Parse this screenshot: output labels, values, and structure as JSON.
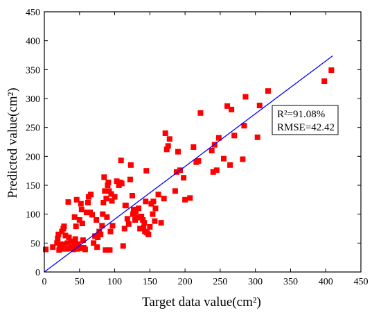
{
  "chart_data": {
    "type": "scatter",
    "title": "",
    "xlabel": "Target data value(cm²)",
    "ylabel": "Predicted value(cm²)",
    "xlim": [
      0,
      450
    ],
    "ylim": [
      0,
      450
    ],
    "xticks": [
      "0",
      "50",
      "100",
      "150",
      "200",
      "250",
      "300",
      "350",
      "400",
      "450"
    ],
    "yticks": [
      "0",
      "50",
      "100",
      "150",
      "200",
      "250",
      "300",
      "350",
      "400",
      "450"
    ],
    "grid": false,
    "legend": "none",
    "marker_color": "#ff0000",
    "line_color": "#0000ff",
    "fit_line": {
      "x": [
        0,
        410
      ],
      "y": [
        0,
        374
      ]
    },
    "annotation": {
      "lines": [
        "R²=91.08%",
        "RMSE=42.42"
      ]
    },
    "points": [
      [
        2,
        39
      ],
      [
        12,
        43
      ],
      [
        18,
        50
      ],
      [
        19,
        58
      ],
      [
        20,
        65
      ],
      [
        21,
        38
      ],
      [
        22,
        47
      ],
      [
        23,
        42
      ],
      [
        24,
        40
      ],
      [
        25,
        70
      ],
      [
        26,
        48
      ],
      [
        27,
        75
      ],
      [
        28,
        79
      ],
      [
        30,
        63
      ],
      [
        32,
        40
      ],
      [
        33,
        50
      ],
      [
        34,
        121
      ],
      [
        35,
        60
      ],
      [
        38,
        53
      ],
      [
        39,
        41
      ],
      [
        40,
        43
      ],
      [
        41,
        39
      ],
      [
        42,
        50
      ],
      [
        43,
        95
      ],
      [
        44,
        57
      ],
      [
        45,
        79
      ],
      [
        46,
        125
      ],
      [
        47,
        40
      ],
      [
        48,
        48
      ],
      [
        50,
        90
      ],
      [
        51,
        41
      ],
      [
        52,
        118
      ],
      [
        53,
        108
      ],
      [
        54,
        84
      ],
      [
        55,
        55
      ],
      [
        56,
        42
      ],
      [
        58,
        39
      ],
      [
        60,
        103
      ],
      [
        62,
        120
      ],
      [
        63,
        130
      ],
      [
        65,
        103
      ],
      [
        66,
        134
      ],
      [
        68,
        99
      ],
      [
        70,
        50
      ],
      [
        72,
        62
      ],
      [
        74,
        90
      ],
      [
        75,
        43
      ],
      [
        76,
        60
      ],
      [
        78,
        70
      ],
      [
        80,
        65
      ],
      [
        82,
        80
      ],
      [
        83,
        100
      ],
      [
        84,
        120
      ],
      [
        85,
        164
      ],
      [
        86,
        140
      ],
      [
        87,
        38
      ],
      [
        88,
        127
      ],
      [
        89,
        95
      ],
      [
        90,
        150
      ],
      [
        91,
        155
      ],
      [
        92,
        140
      ],
      [
        93,
        38
      ],
      [
        94,
        70
      ],
      [
        95,
        135
      ],
      [
        96,
        123
      ],
      [
        97,
        80
      ],
      [
        100,
        130
      ],
      [
        103,
        157
      ],
      [
        106,
        150
      ],
      [
        108,
        155
      ],
      [
        109,
        193
      ],
      [
        110,
        153
      ],
      [
        112,
        45
      ],
      [
        114,
        75
      ],
      [
        115,
        115
      ],
      [
        116,
        115
      ],
      [
        118,
        92
      ],
      [
        120,
        83
      ],
      [
        122,
        160
      ],
      [
        123,
        185
      ],
      [
        125,
        132
      ],
      [
        126,
        100
      ],
      [
        127,
        108
      ],
      [
        128,
        100
      ],
      [
        129,
        90
      ],
      [
        130,
        104
      ],
      [
        132,
        94
      ],
      [
        134,
        110
      ],
      [
        136,
        75
      ],
      [
        138,
        96
      ],
      [
        140,
        90
      ],
      [
        141,
        76
      ],
      [
        142,
        85
      ],
      [
        143,
        70
      ],
      [
        144,
        122
      ],
      [
        145,
        175
      ],
      [
        146,
        68
      ],
      [
        148,
        65
      ],
      [
        150,
        78
      ],
      [
        152,
        118
      ],
      [
        154,
        100
      ],
      [
        155,
        122
      ],
      [
        157,
        88
      ],
      [
        158,
        110
      ],
      [
        162,
        134
      ],
      [
        166,
        85
      ],
      [
        170,
        127
      ],
      [
        172,
        240
      ],
      [
        174,
        212
      ],
      [
        176,
        218
      ],
      [
        178,
        230
      ],
      [
        186,
        140
      ],
      [
        188,
        173
      ],
      [
        190,
        208
      ],
      [
        193,
        176
      ],
      [
        198,
        163
      ],
      [
        200,
        125
      ],
      [
        207,
        128
      ],
      [
        212,
        216
      ],
      [
        216,
        190
      ],
      [
        219,
        192
      ],
      [
        222,
        275
      ],
      [
        238,
        210
      ],
      [
        240,
        173
      ],
      [
        242,
        220
      ],
      [
        245,
        176
      ],
      [
        248,
        232
      ],
      [
        255,
        196
      ],
      [
        260,
        287
      ],
      [
        264,
        185
      ],
      [
        266,
        281
      ],
      [
        270,
        236
      ],
      [
        282,
        195
      ],
      [
        284,
        253
      ],
      [
        286,
        303
      ],
      [
        303,
        233
      ],
      [
        306,
        288
      ],
      [
        318,
        313
      ],
      [
        398,
        330
      ],
      [
        408,
        349
      ]
    ]
  }
}
